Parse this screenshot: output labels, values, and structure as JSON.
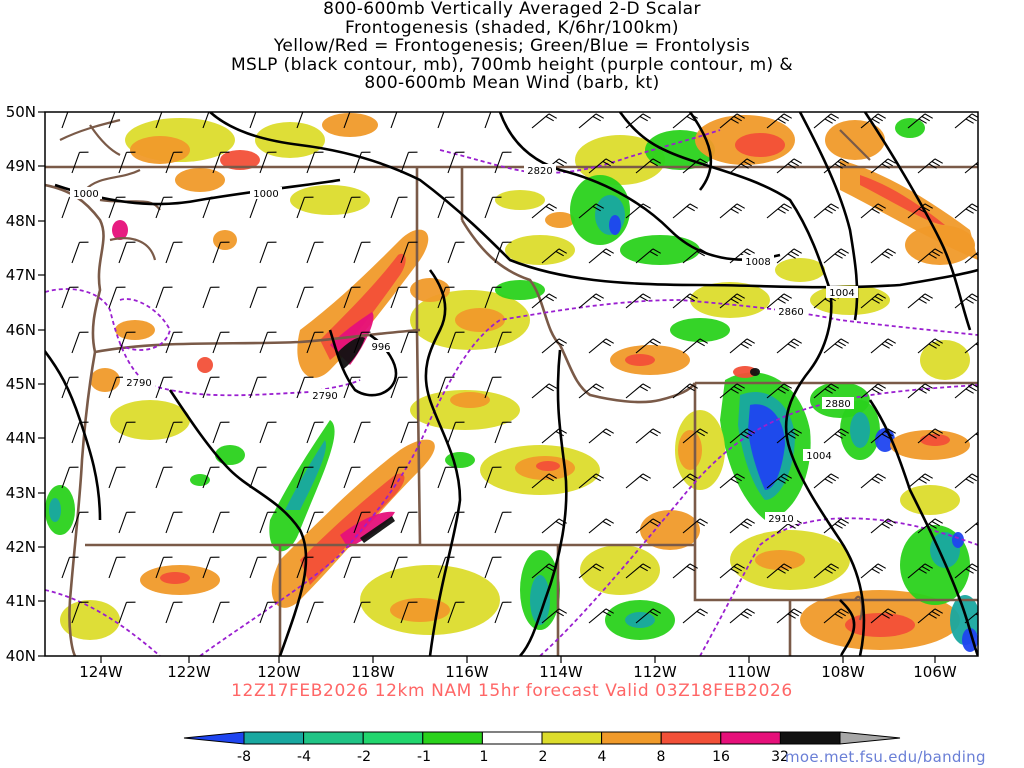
{
  "title_lines": [
    "800-600mb Vertically Averaged 2-D Scalar",
    "Frontogenesis (shaded, K/6hr/100km)",
    "Yellow/Red = Frontogenesis;  Green/Blue = Frontolysis",
    "MSLP (black contour, mb), 700mb height (purple contour, m) &",
    "800-600mb Mean Wind (barb, kt)"
  ],
  "valid_line": "12Z17FEB2026 12km NAM 15hr forecast Valid 03Z18FEB2026",
  "credit": "moe.met.fsu.edu/banding",
  "map": {
    "lon_labels": [
      "124W",
      "122W",
      "120W",
      "118W",
      "116W",
      "114W",
      "112W",
      "110W",
      "108W",
      "106W"
    ],
    "lat_labels": [
      "50N",
      "49N",
      "48N",
      "47N",
      "46N",
      "45N",
      "44N",
      "43N",
      "42N",
      "41N",
      "40N"
    ],
    "mslp_labels": [
      "1000",
      "1000",
      "996",
      "1008",
      "1004",
      "1004"
    ],
    "height_labels": [
      "2820",
      "2790",
      "2790",
      "2860",
      "2880",
      "2910"
    ]
  },
  "colorbar": {
    "bins": [
      {
        "color": "#1f45f0"
      },
      {
        "color": "#19a8a0"
      },
      {
        "color": "#20c486"
      },
      {
        "color": "#22d66e"
      },
      {
        "color": "#2ad21c"
      },
      {
        "color": "#ffffff"
      },
      {
        "color": "#dcdc2c"
      },
      {
        "color": "#f09a2a"
      },
      {
        "color": "#f25038"
      },
      {
        "color": "#e6107a"
      },
      {
        "color": "#111111"
      },
      {
        "color": "#a7a7a7"
      }
    ],
    "tick_labels": [
      "-8",
      "-4",
      "-2",
      "-1",
      "1",
      "2",
      "4",
      "8",
      "16",
      "32"
    ]
  },
  "colors": {
    "frontolysis_blue": "#1f45f0",
    "frontolysis_teal": "#19a8a0",
    "frontolysis_green": "#2ad21c",
    "frontogenesis_yellow": "#dcdc2c",
    "frontogenesis_orange": "#f09a2a",
    "frontogenesis_red": "#f25038",
    "frontogenesis_magenta": "#e6107a",
    "mslp_contour": "#000000",
    "height_contour": "#9a1fd0",
    "borders": "#7a5a48",
    "valid_text": "#ff6666",
    "credit_text": "#6a7fd6"
  }
}
